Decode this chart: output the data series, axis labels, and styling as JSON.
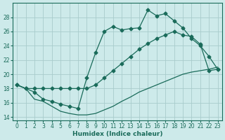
{
  "xlabel": "Humidex (Indice chaleur)",
  "bg_color": "#cdeaea",
  "grid_color": "#a8cccc",
  "line_color": "#1a6b5a",
  "line1_x": [
    0,
    1,
    2,
    3,
    4,
    5,
    6,
    7,
    8,
    9,
    10,
    11,
    12,
    13,
    14,
    15,
    16,
    17,
    18,
    19,
    20,
    21,
    22,
    23
  ],
  "line1_y": [
    18.5,
    18.0,
    17.5,
    16.5,
    16.2,
    15.8,
    15.5,
    15.2,
    19.5,
    23.0,
    26.0,
    26.7,
    26.2,
    26.4,
    26.5,
    29.0,
    28.2,
    28.5,
    27.5,
    26.5,
    25.0,
    24.0,
    22.5,
    20.7
  ],
  "line2_x": [
    0,
    1,
    2,
    3,
    4,
    5,
    6,
    7,
    8,
    9,
    10,
    11,
    12,
    13,
    14,
    15,
    16,
    17,
    18,
    19,
    20,
    21,
    22,
    23
  ],
  "line2_y": [
    18.5,
    18.0,
    18.0,
    18.0,
    18.0,
    18.0,
    18.0,
    18.0,
    18.0,
    18.5,
    19.5,
    20.5,
    21.5,
    22.5,
    23.5,
    24.3,
    25.0,
    25.5,
    26.0,
    25.5,
    25.3,
    24.2,
    20.5,
    20.7
  ],
  "line3_x": [
    0,
    1,
    2,
    3,
    4,
    5,
    6,
    7,
    8,
    9,
    10,
    11,
    12,
    13,
    14,
    15,
    16,
    17,
    18,
    19,
    20,
    21,
    22,
    23
  ],
  "line3_y": [
    18.5,
    18.0,
    16.5,
    16.2,
    15.5,
    14.8,
    14.5,
    14.3,
    14.3,
    14.5,
    15.0,
    15.5,
    16.2,
    16.8,
    17.5,
    18.0,
    18.5,
    19.0,
    19.5,
    20.0,
    20.3,
    20.5,
    20.7,
    21.0
  ],
  "xlim": [
    -0.5,
    23.5
  ],
  "ylim": [
    13.5,
    30
  ],
  "yticks": [
    14,
    16,
    18,
    20,
    22,
    24,
    26,
    28
  ],
  "xticks": [
    0,
    1,
    2,
    3,
    4,
    5,
    6,
    7,
    8,
    9,
    10,
    11,
    12,
    13,
    14,
    15,
    16,
    17,
    18,
    19,
    20,
    21,
    22,
    23
  ]
}
